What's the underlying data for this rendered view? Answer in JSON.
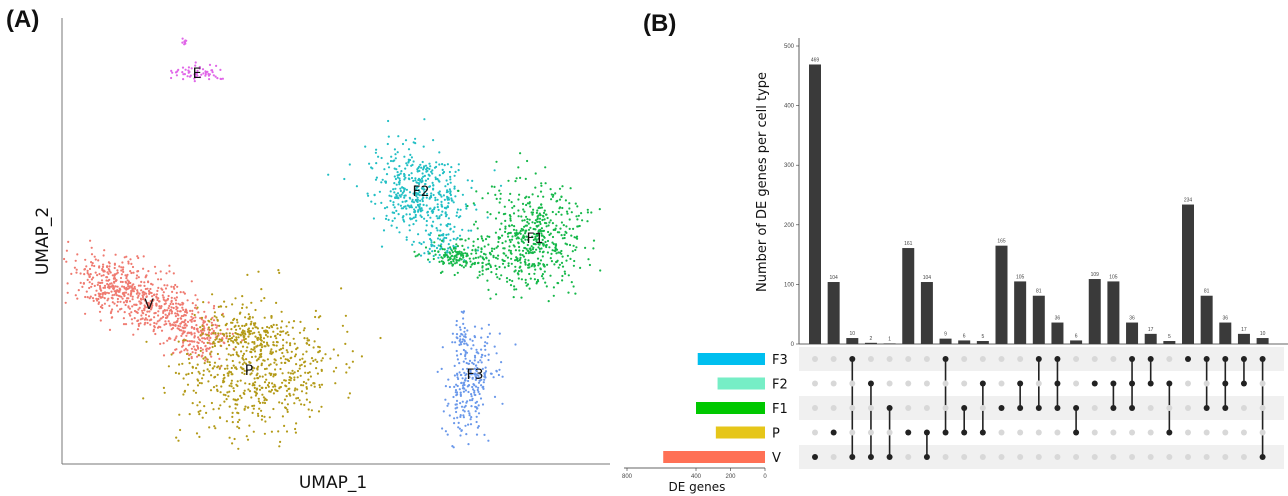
{
  "panel_a": {
    "label": "(A)",
    "xlabel": "UMAP_1",
    "ylabel": "UMAP_2",
    "clusters": [
      {
        "name": "E",
        "color": "#e066e8"
      },
      {
        "name": "F2",
        "color": "#22bfc4"
      },
      {
        "name": "F1",
        "color": "#16b84a"
      },
      {
        "name": "V",
        "color": "#ef7a70"
      },
      {
        "name": "P",
        "color": "#b39a18"
      },
      {
        "name": "F3",
        "color": "#6a98ea"
      }
    ]
  },
  "panel_b": {
    "label": "(B)",
    "ylabel": "Number of DE genes per cell type",
    "set_size_label": "DE genes",
    "colors": {
      "bar": "#3a3a3a",
      "dot_on": "#222222",
      "dot_off": "#d8d8d8",
      "stripe": "#f0f0f0"
    }
  },
  "chart_data": {
    "type": "bar",
    "title": "",
    "ylabel": "Number of DE genes per cell type",
    "ylim": [
      0,
      500
    ],
    "yticks": [
      "0",
      "100",
      "200",
      "300",
      "400",
      "500"
    ],
    "sets": [
      "F3",
      "F2",
      "F1",
      "P",
      "V"
    ],
    "set_colors": [
      "#00bfef",
      "#76eec6",
      "#00c800",
      "#e6c619",
      "#ff7055"
    ],
    "set_sizes": [
      390,
      275,
      400,
      285,
      590
    ],
    "set_size_ticks": [
      "800",
      "400",
      "200",
      "0"
    ],
    "set_size_xlabel": "DE genes",
    "intersections": [
      {
        "sets": [
          "V"
        ],
        "value": 469,
        "label": "469"
      },
      {
        "sets": [
          "P"
        ],
        "value": 104,
        "label": "104"
      },
      {
        "sets": [
          "F3",
          "V"
        ],
        "value": 10,
        "label": "10"
      },
      {
        "sets": [
          "F2",
          "V"
        ],
        "value": 2,
        "label": "2"
      },
      {
        "sets": [
          "F1",
          "V"
        ],
        "value": 1,
        "label": "1"
      },
      {
        "sets": [
          "P"
        ],
        "value": 161,
        "label": "161"
      },
      {
        "sets": [
          "P",
          "V"
        ],
        "value": 104,
        "label": "104"
      },
      {
        "sets": [
          "F3",
          "P"
        ],
        "value": 9,
        "label": "9"
      },
      {
        "sets": [
          "F1",
          "P"
        ],
        "value": 6,
        "label": "6"
      },
      {
        "sets": [
          "F2",
          "P"
        ],
        "value": 5,
        "label": "5"
      },
      {
        "sets": [
          "F1"
        ],
        "value": 165,
        "label": "165"
      },
      {
        "sets": [
          "F2",
          "F1"
        ],
        "value": 105,
        "label": "105"
      },
      {
        "sets": [
          "F3",
          "F1"
        ],
        "value": 81,
        "label": "81"
      },
      {
        "sets": [
          "F3",
          "F2",
          "F1"
        ],
        "value": 36,
        "label": "36"
      },
      {
        "sets": [
          "F1",
          "P"
        ],
        "value": 6,
        "label": "6"
      },
      {
        "sets": [
          "F2"
        ],
        "value": 109,
        "label": "109"
      },
      {
        "sets": [
          "F2",
          "F1"
        ],
        "value": 105,
        "label": "105"
      },
      {
        "sets": [
          "F3",
          "F2",
          "F1"
        ],
        "value": 36,
        "label": "36"
      },
      {
        "sets": [
          "F3",
          "F2"
        ],
        "value": 17,
        "label": "17"
      },
      {
        "sets": [
          "F2",
          "P"
        ],
        "value": 5,
        "label": "5"
      },
      {
        "sets": [
          "F3"
        ],
        "value": 234,
        "label": "234"
      },
      {
        "sets": [
          "F3",
          "F1"
        ],
        "value": 81,
        "label": "81"
      },
      {
        "sets": [
          "F3",
          "F2",
          "F1"
        ],
        "value": 36,
        "label": "36"
      },
      {
        "sets": [
          "F3",
          "F2"
        ],
        "value": 17,
        "label": "17"
      },
      {
        "sets": [
          "F3",
          "V"
        ],
        "value": 10,
        "label": "10"
      }
    ]
  }
}
